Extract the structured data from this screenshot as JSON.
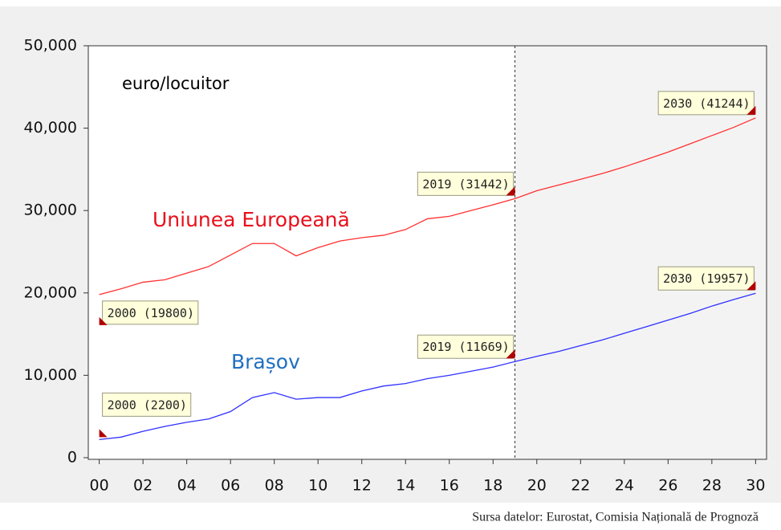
{
  "chart_data": {
    "type": "line",
    "ylabel": "euro/locuitor",
    "source": "Sursa datelor: Eurostat, Comisia Națională de Prognoză",
    "x": [
      2000,
      2001,
      2002,
      2003,
      2004,
      2005,
      2006,
      2007,
      2008,
      2009,
      2010,
      2011,
      2012,
      2013,
      2014,
      2015,
      2016,
      2017,
      2018,
      2019,
      2020,
      2021,
      2022,
      2023,
      2024,
      2025,
      2026,
      2027,
      2028,
      2029,
      2030
    ],
    "series": [
      {
        "name": "Uniunea Europeană",
        "color": "#ff3030",
        "label_color": "#e8101c",
        "values": [
          19800,
          20500,
          21300,
          21600,
          22400,
          23200,
          24600,
          26000,
          26000,
          24500,
          25500,
          26300,
          26700,
          27000,
          27700,
          29000,
          29300,
          30000,
          30700,
          31442,
          32400,
          33100,
          33800,
          34500,
          35300,
          36200,
          37100,
          38100,
          39100,
          40100,
          41244
        ],
        "value_labels": [
          "2000 (19800)",
          null,
          null,
          null,
          null,
          null,
          null,
          null,
          null,
          null,
          null,
          null,
          null,
          null,
          null,
          null,
          null,
          null,
          null,
          "2019 (31442)",
          null,
          null,
          null,
          null,
          null,
          null,
          null,
          null,
          null,
          null,
          "2030 (41244)"
        ]
      },
      {
        "name": "Brașov",
        "color": "#3030ff",
        "label_color": "#1f6fbf",
        "values": [
          2200,
          2500,
          3200,
          3800,
          4300,
          4700,
          5600,
          7300,
          7900,
          7100,
          7300,
          7300,
          8100,
          8700,
          9000,
          9600,
          10000,
          10500,
          11000,
          11669,
          12300,
          12900,
          13600,
          14300,
          15100,
          15900,
          16700,
          17500,
          18400,
          19200,
          19957
        ],
        "value_labels": [
          "2000 (2200)",
          null,
          null,
          null,
          null,
          null,
          null,
          null,
          null,
          null,
          null,
          null,
          null,
          null,
          null,
          null,
          null,
          null,
          null,
          "2019 (11669)",
          null,
          null,
          null,
          null,
          null,
          null,
          null,
          null,
          null,
          null,
          "2030 (19957)"
        ]
      }
    ],
    "xlim": [
      1999.5,
      2030.5
    ],
    "xticks": [
      {
        "value": 2000,
        "label": "00"
      },
      {
        "value": 2002,
        "label": "02"
      },
      {
        "value": 2004,
        "label": "04"
      },
      {
        "value": 2006,
        "label": "06"
      },
      {
        "value": 2008,
        "label": "08"
      },
      {
        "value": 2010,
        "label": "10"
      },
      {
        "value": 2012,
        "label": "12"
      },
      {
        "value": 2014,
        "label": "14"
      },
      {
        "value": 2016,
        "label": "16"
      },
      {
        "value": 2018,
        "label": "18"
      },
      {
        "value": 2020,
        "label": "20"
      },
      {
        "value": 2022,
        "label": "22"
      },
      {
        "value": 2024,
        "label": "24"
      },
      {
        "value": 2026,
        "label": "26"
      },
      {
        "value": 2028,
        "label": "28"
      },
      {
        "value": 2030,
        "label": "30"
      }
    ],
    "ylim": [
      -200,
      50000
    ],
    "yticks": [
      {
        "value": 0,
        "label": "0"
      },
      {
        "value": 10000,
        "label": "10,000"
      },
      {
        "value": 20000,
        "label": "20,000"
      },
      {
        "value": 30000,
        "label": "30,000"
      },
      {
        "value": 40000,
        "label": "40,000"
      },
      {
        "value": 50000,
        "label": "50,000"
      }
    ],
    "forecast_start": 2019,
    "grid": false
  }
}
